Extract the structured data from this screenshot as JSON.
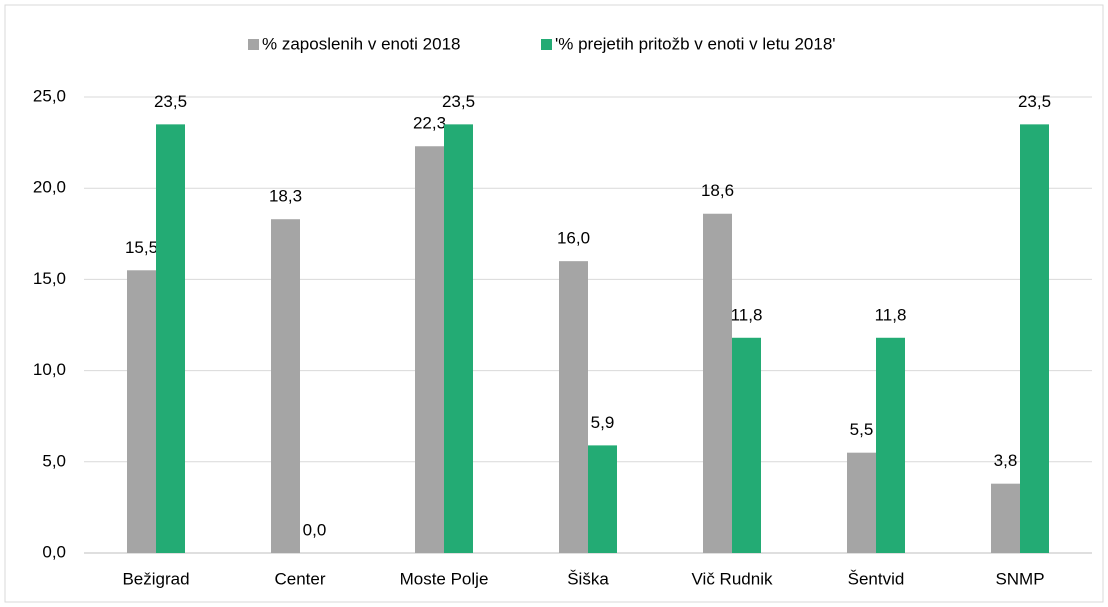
{
  "chart_data": {
    "type": "bar",
    "categories": [
      "Bežigrad",
      "Center",
      "Moste Polje",
      "Šiška",
      "Vič Rudnik",
      "Šentvid",
      "SNMP"
    ],
    "series": [
      {
        "name": "% zaposlenih v enoti 2018",
        "color": "#a5a5a5",
        "values": [
          15.5,
          18.3,
          22.3,
          16.0,
          18.6,
          5.5,
          3.8
        ],
        "value_labels": [
          "15,5",
          "18,3",
          "22,3",
          "16,0",
          "18,6",
          "5,5",
          "3,8"
        ]
      },
      {
        "name": "'% prejetih pritožb v enoti v letu 2018'",
        "color": "#23ab74",
        "values": [
          23.5,
          0.0,
          23.5,
          5.9,
          11.8,
          11.8,
          23.5
        ],
        "value_labels": [
          "23,5",
          "0,0",
          "23,5",
          "5,9",
          "11,8",
          "11,8",
          "23,5"
        ]
      }
    ],
    "ylim": [
      0,
      25
    ],
    "yticks": [
      {
        "value": 0,
        "label": "0,0"
      },
      {
        "value": 5,
        "label": "5,0"
      },
      {
        "value": 10,
        "label": "10,0"
      },
      {
        "value": 15,
        "label": "15,0"
      },
      {
        "value": 20,
        "label": "20,0"
      },
      {
        "value": 25,
        "label": "25,0"
      }
    ],
    "grid": true,
    "legend": "top"
  }
}
